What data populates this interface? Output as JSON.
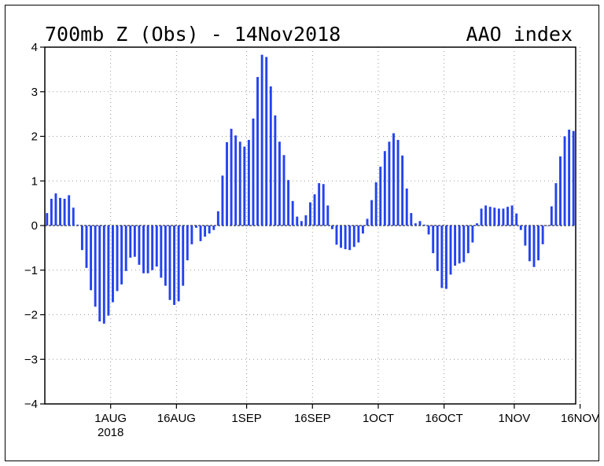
{
  "chart_data": {
    "type": "bar",
    "title": "700mb Z (Obs) - 14Nov2018",
    "index_label": "AAO index",
    "ylim": [
      -4,
      4
    ],
    "yticks": [
      4,
      3,
      2,
      1,
      0,
      -1,
      -2,
      -3,
      -4
    ],
    "ytick_labels": [
      "4",
      "3",
      "2",
      "1",
      "0",
      "−1",
      "−2",
      "−3",
      "−4"
    ],
    "x_start": "2018-07-17",
    "xticks": [
      {
        "date": "2018-08-01",
        "label": "1AUG",
        "sublabel": "2018"
      },
      {
        "date": "2018-08-16",
        "label": "16AUG"
      },
      {
        "date": "2018-09-01",
        "label": "1SEP"
      },
      {
        "date": "2018-09-16",
        "label": "16SEP"
      },
      {
        "date": "2018-10-01",
        "label": "1OCT"
      },
      {
        "date": "2018-10-16",
        "label": "16OCT"
      },
      {
        "date": "2018-11-01",
        "label": "1NOV"
      },
      {
        "date": "2018-11-16",
        "label": "16NOV"
      }
    ],
    "grid": true,
    "bar_color": "#2443ee",
    "values": [
      0.28,
      0.6,
      0.72,
      0.62,
      0.6,
      0.68,
      0.4,
      0.02,
      -0.55,
      -0.95,
      -1.45,
      -1.82,
      -2.15,
      -2.2,
      -2.02,
      -1.72,
      -1.47,
      -1.32,
      -1.02,
      -0.72,
      -0.7,
      -0.88,
      -1.07,
      -1.07,
      -1.0,
      -0.92,
      -1.17,
      -1.35,
      -1.67,
      -1.78,
      -1.7,
      -1.35,
      -0.78,
      -0.42,
      -0.05,
      -0.35,
      -0.25,
      -0.18,
      -0.1,
      0.32,
      1.12,
      1.87,
      2.17,
      2.02,
      1.88,
      1.77,
      1.92,
      2.4,
      3.33,
      3.83,
      3.78,
      3.12,
      2.47,
      1.88,
      1.58,
      1.02,
      0.55,
      0.2,
      0.1,
      0.23,
      0.52,
      0.7,
      0.95,
      0.93,
      0.45,
      -0.08,
      -0.43,
      -0.5,
      -0.53,
      -0.55,
      -0.48,
      -0.38,
      -0.18,
      0.15,
      0.57,
      0.97,
      1.32,
      1.67,
      1.88,
      2.07,
      1.92,
      1.57,
      0.83,
      0.28,
      0.05,
      0.1,
      0.02,
      -0.2,
      -0.62,
      -1.02,
      -1.4,
      -1.42,
      -1.1,
      -0.9,
      -0.85,
      -0.82,
      -0.62,
      -0.38,
      0.05,
      0.38,
      0.45,
      0.42,
      0.4,
      0.38,
      0.38,
      0.42,
      0.45,
      0.27,
      -0.1,
      -0.45,
      -0.8,
      -0.93,
      -0.78,
      -0.42,
      0.0,
      0.43,
      0.95,
      1.55,
      2.0,
      2.15,
      2.12
    ]
  }
}
